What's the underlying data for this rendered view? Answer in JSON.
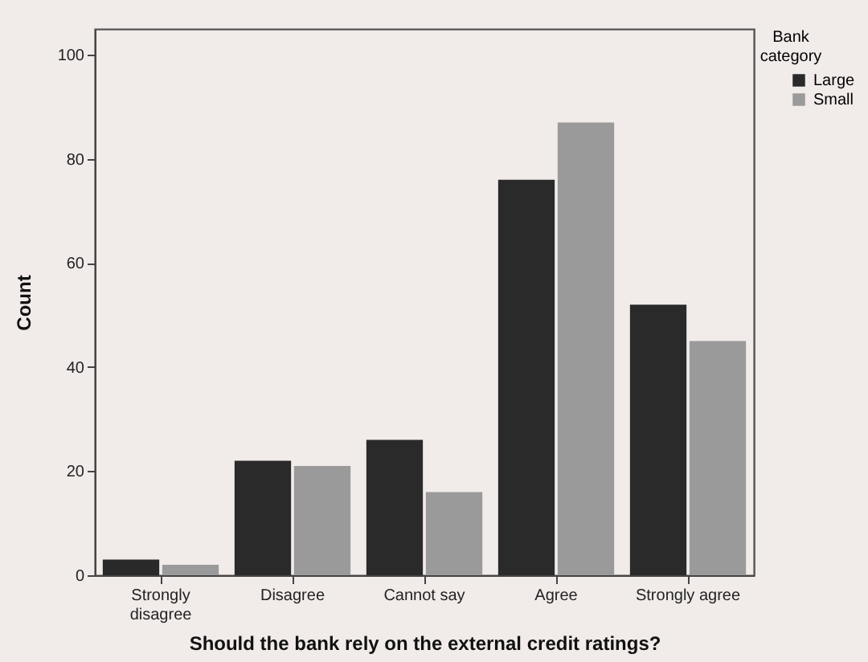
{
  "chart_data": {
    "type": "bar",
    "xlabel": "Should the bank rely on the external credit ratings?",
    "ylabel": "Count",
    "legend_title": "Bank category",
    "categories": [
      "Strongly disagree",
      "Disagree",
      "Cannot say",
      "Agree",
      "Strongly agree"
    ],
    "series": [
      {
        "name": "Large",
        "color": "#2a2a2a",
        "values": [
          3,
          22,
          26,
          76,
          52
        ]
      },
      {
        "name": "Small",
        "color": "#9a9a9a",
        "values": [
          2,
          21,
          16,
          87,
          45
        ]
      }
    ],
    "ylim": [
      0,
      105
    ],
    "yticks": [
      0,
      20,
      40,
      60,
      80,
      100
    ],
    "grid": false,
    "legend": "top right"
  }
}
